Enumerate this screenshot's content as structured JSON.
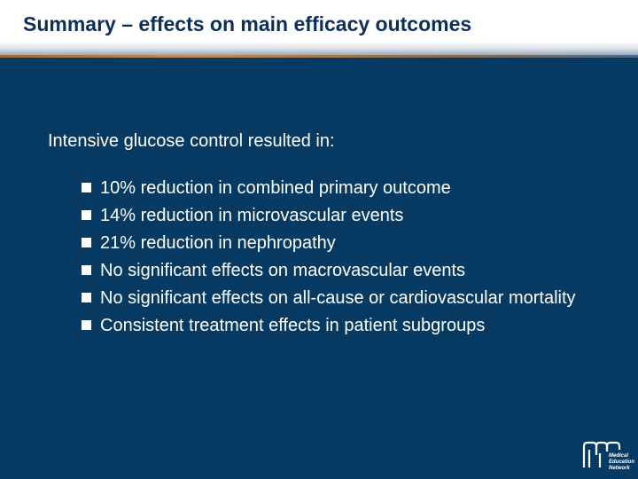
{
  "slide": {
    "title": "Summary – effects on main efficacy outcomes",
    "intro": "Intensive glucose control resulted in:",
    "bullets": [
      "10% reduction in combined primary outcome",
      "14% reduction in microvascular events",
      "21% reduction in nephropathy",
      "No significant effects on macrovascular events",
      "No significant effects on all-cause or cardiovascular mortality",
      "Consistent treatment effects in patient subgroups"
    ]
  },
  "logo": {
    "line1": "Medical",
    "line2": "Education",
    "line3": "Network"
  },
  "colors": {
    "background": "#063a63",
    "title": "#0b2f5a",
    "text": "#ffffff"
  }
}
